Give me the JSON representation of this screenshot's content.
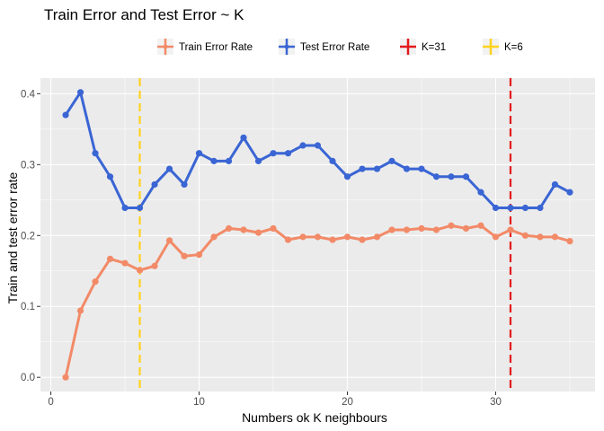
{
  "chart_data": {
    "type": "line",
    "title": "Train Error and Test Error ~ K",
    "xlabel": "Numbers ok K neighbours",
    "ylabel": "Train and test error rate",
    "xlim": [
      -0.7,
      36.7
    ],
    "ylim": [
      -0.02,
      0.422
    ],
    "x_ticks": [
      0,
      10,
      20,
      30
    ],
    "y_ticks": [
      0.0,
      0.1,
      0.2,
      0.3,
      0.4
    ],
    "y_tick_labels": [
      "0.0",
      "0.1",
      "0.2",
      "0.3",
      "0.4"
    ],
    "x_tick_labels": [
      "0",
      "10",
      "20",
      "30"
    ],
    "grid": true,
    "legend_position": "top",
    "x": [
      1,
      2,
      3,
      4,
      5,
      6,
      7,
      8,
      9,
      10,
      11,
      12,
      13,
      14,
      15,
      16,
      17,
      18,
      19,
      20,
      21,
      22,
      23,
      24,
      25,
      26,
      27,
      28,
      29,
      30,
      31,
      32,
      33,
      34,
      35
    ],
    "series": [
      {
        "name": "Train Error Rate",
        "color": "#f28a68",
        "values": [
          0.0,
          0.094,
          0.135,
          0.167,
          0.161,
          0.151,
          0.157,
          0.193,
          0.171,
          0.173,
          0.198,
          0.21,
          0.208,
          0.204,
          0.21,
          0.194,
          0.198,
          0.198,
          0.194,
          0.198,
          0.194,
          0.198,
          0.208,
          0.208,
          0.21,
          0.208,
          0.214,
          0.21,
          0.214,
          0.198,
          0.208,
          0.2,
          0.198,
          0.198,
          0.192
        ]
      },
      {
        "name": "Test Error Rate",
        "color": "#3a65d4",
        "values": [
          0.37,
          0.402,
          0.316,
          0.283,
          0.239,
          0.239,
          0.272,
          0.294,
          0.272,
          0.316,
          0.305,
          0.305,
          0.338,
          0.305,
          0.316,
          0.316,
          0.327,
          0.327,
          0.305,
          0.283,
          0.294,
          0.294,
          0.305,
          0.294,
          0.294,
          0.283,
          0.283,
          0.283,
          0.261,
          0.239,
          0.239,
          0.239,
          0.239,
          0.272,
          0.261
        ]
      }
    ],
    "vlines": [
      {
        "name": "K=31",
        "x": 31,
        "color": "#e31a1c"
      },
      {
        "name": "K=6",
        "x": 6,
        "color": "#ffd21f"
      }
    ],
    "panel_background": "#ebebeb",
    "grid_color": "#ffffff"
  }
}
